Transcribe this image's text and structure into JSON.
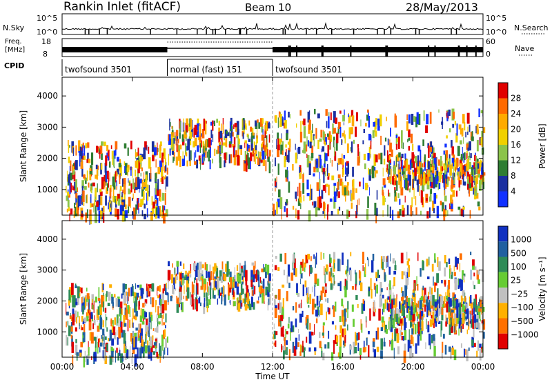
{
  "header": {
    "title": "Rankin Inlet (fitACF)",
    "beam": "Beam 10",
    "date": "28/May/2013"
  },
  "top_panels": {
    "left_nsky": "N.Sky",
    "nsky_ticks": [
      "10^5",
      "10^0"
    ],
    "right_nsearch": "N.Search",
    "nsearch_ticks": [
      "10^5",
      "10^0"
    ],
    "freq_label": [
      "Freq.",
      "[MHz]"
    ],
    "freq_ticks": [
      "18",
      "8"
    ],
    "nave_label": "Nave",
    "nave_ticks": [
      "60",
      "0"
    ],
    "cpid_label": "CPID",
    "cpid_segments": [
      {
        "label": "twofsound 3501",
        "start": 0,
        "end": 6
      },
      {
        "label": "normal (fast) 151",
        "start": 6,
        "end": 12
      },
      {
        "label": "twofsound 3501",
        "start": 12,
        "end": 24
      }
    ]
  },
  "chart_data": [
    {
      "type": "heatmap",
      "name": "power",
      "ylabel": "Slant Range [km]",
      "yticks": [
        1000,
        2000,
        3000,
        4000
      ],
      "ylim": [
        180,
        4600
      ],
      "xlim": [
        0,
        24
      ],
      "colorbar": {
        "label": "Power [dB]",
        "ticks": [
          "28",
          "24",
          "20",
          "16",
          "12",
          "8",
          "4"
        ],
        "colors": [
          "#e00000",
          "#ff6a00",
          "#ffaa00",
          "#f0d000",
          "#8bc34a",
          "#2e7d32",
          "#1a2fa0",
          "#1030ff"
        ]
      }
    },
    {
      "type": "heatmap",
      "name": "velocity",
      "ylabel": "Slant Range [km]",
      "yticks": [
        1000,
        2000,
        3000,
        4000
      ],
      "ylim": [
        180,
        4600
      ],
      "xlim": [
        0,
        24
      ],
      "xticks": [
        "00:00",
        "04:00",
        "08:00",
        "12:00",
        "16:00",
        "20:00",
        "00:00"
      ],
      "xlabel": "Time UT",
      "colorbar": {
        "label": "Velocity [m s⁻¹]",
        "ticks": [
          "1000",
          "500",
          "100",
          "25",
          "−25",
          "−100",
          "−500",
          "−1000"
        ],
        "colors": [
          "#1030c0",
          "#2060a0",
          "#2e8b57",
          "#66cc33",
          "#c0c0c0",
          "#ffb000",
          "#ff7000",
          "#e00000"
        ]
      }
    }
  ]
}
